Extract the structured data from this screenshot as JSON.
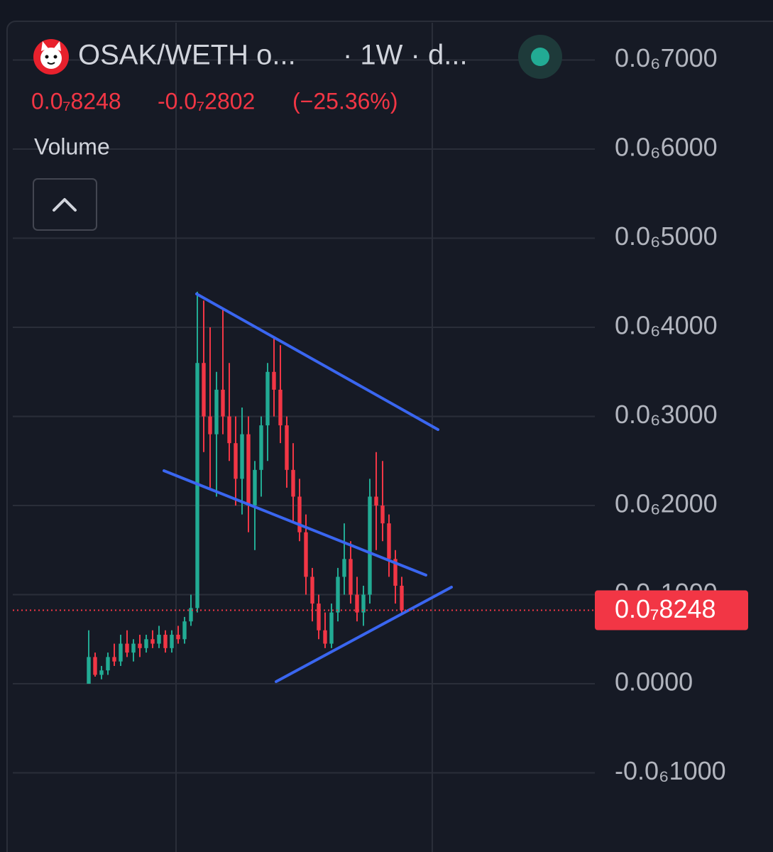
{
  "chart_data": {
    "type": "candlestick",
    "title": "OSAK/WETH o...",
    "subtitle": "· 1W · d...",
    "panel_label": "Volume",
    "last_price": {
      "value": 8.248e-08,
      "label": "0.0₇8248"
    },
    "change": {
      "value": -2.802e-08,
      "label": "-0.0₇2802"
    },
    "change_percent": {
      "value": -25.36,
      "label": "(−25.36%)"
    },
    "up_color": "#22ab94",
    "down_color": "#f23645",
    "grid": true,
    "ylim": [
      7.514e-07,
      -1.888e-07
    ],
    "yticks": [
      {
        "value": 7e-07,
        "label": "0.0₆7000"
      },
      {
        "value": 6e-07,
        "label": "0.0₆6000"
      },
      {
        "value": 5e-07,
        "label": "0.0₆5000"
      },
      {
        "value": 4e-07,
        "label": "0.0₆4000"
      },
      {
        "value": 3e-07,
        "label": "0.0₆3000"
      },
      {
        "value": 2e-07,
        "label": "0.0₆2000"
      },
      {
        "value": 1e-07,
        "label": "0.0₆1000"
      },
      {
        "value": 0,
        "label": "0.0000"
      },
      {
        "value": -1e-07,
        "label": "-0.0₆1000"
      }
    ],
    "open": [
      0,
      3e-08,
      1e-08,
      1.5e-08,
      3e-08,
      2.5e-08,
      4.5e-08,
      3.5e-08,
      4.5e-08,
      4e-08,
      5e-08,
      4.5e-08,
      5.5e-08,
      4e-08,
      5.5e-08,
      5e-08,
      7e-08,
      8.5e-08,
      3.6e-07,
      3e-07,
      2.8e-07,
      3.3e-07,
      3e-07,
      2.7e-07,
      2.3e-07,
      2.8e-07,
      2e-07,
      2.4e-07,
      2.9e-07,
      3.5e-07,
      3.3e-07,
      2.9e-07,
      2.4e-07,
      2.1e-07,
      1.7e-07,
      1.2e-07,
      9e-08,
      6e-08,
      4.5e-08,
      8e-08,
      1.2e-07,
      1.4e-07,
      1e-07,
      8e-08,
      1e-07,
      2.1e-07,
      2e-07,
      1.8e-07,
      1.4e-07,
      1.1e-07
    ],
    "high": [
      6e-08,
      3.5e-08,
      2e-08,
      3.5e-08,
      4.5e-08,
      5.5e-08,
      6e-08,
      5e-08,
      5.5e-08,
      5.5e-08,
      6e-08,
      6.5e-08,
      6e-08,
      6e-08,
      6.5e-08,
      7.5e-08,
      1e-07,
      4.4e-07,
      4.3e-07,
      4e-07,
      3.5e-07,
      4.2e-07,
      3.6e-07,
      3e-07,
      3.1e-07,
      3e-07,
      2.5e-07,
      3e-07,
      3.6e-07,
      3.9e-07,
      3.8e-07,
      3e-07,
      2.7e-07,
      2.3e-07,
      1.9e-07,
      1.3e-07,
      1e-07,
      8e-08,
      9e-08,
      1.3e-07,
      1.8e-07,
      1.6e-07,
      1.2e-07,
      1.1e-07,
      2.3e-07,
      2.6e-07,
      2.5e-07,
      1.9e-07,
      1.5e-07,
      1.2e-07
    ],
    "low": [
      0,
      8e-09,
      5e-09,
      1e-08,
      2e-08,
      2e-08,
      3e-08,
      2.5e-08,
      3e-08,
      3.5e-08,
      4e-08,
      4e-08,
      3.5e-08,
      3.5e-08,
      4.5e-08,
      4.5e-08,
      6.5e-08,
      8e-08,
      2.6e-07,
      2.2e-07,
      2.1e-07,
      2.8e-07,
      2.5e-07,
      2e-07,
      1.9e-07,
      1.7e-07,
      1.5e-07,
      2.1e-07,
      2.5e-07,
      3e-07,
      2.7e-07,
      2.2e-07,
      1.8e-07,
      1.6e-07,
      1e-07,
      7e-08,
      5e-08,
      4e-08,
      4e-08,
      7e-08,
      1e-07,
      9e-08,
      7e-08,
      6.5e-08,
      9e-08,
      1.5e-07,
      1.6e-07,
      1.2e-07,
      9e-08,
      8e-08
    ],
    "close": [
      3e-08,
      1e-08,
      1.5e-08,
      3e-08,
      2.5e-08,
      4.5e-08,
      3.5e-08,
      4.5e-08,
      4e-08,
      5e-08,
      4.5e-08,
      5.5e-08,
      4e-08,
      5.5e-08,
      5e-08,
      7e-08,
      8.5e-08,
      3.6e-07,
      3e-07,
      2.8e-07,
      3.3e-07,
      3e-07,
      2.7e-07,
      2.3e-07,
      2.8e-07,
      2e-07,
      2.4e-07,
      2.9e-07,
      3.5e-07,
      3.3e-07,
      2.9e-07,
      2.4e-07,
      2.1e-07,
      1.7e-07,
      1.2e-07,
      9e-08,
      6e-08,
      4.5e-08,
      8e-08,
      1.2e-07,
      1.4e-07,
      1e-07,
      8e-08,
      1e-07,
      2.1e-07,
      2e-07,
      1.8e-07,
      1.4e-07,
      1.1e-07,
      8.248e-08
    ]
  }
}
